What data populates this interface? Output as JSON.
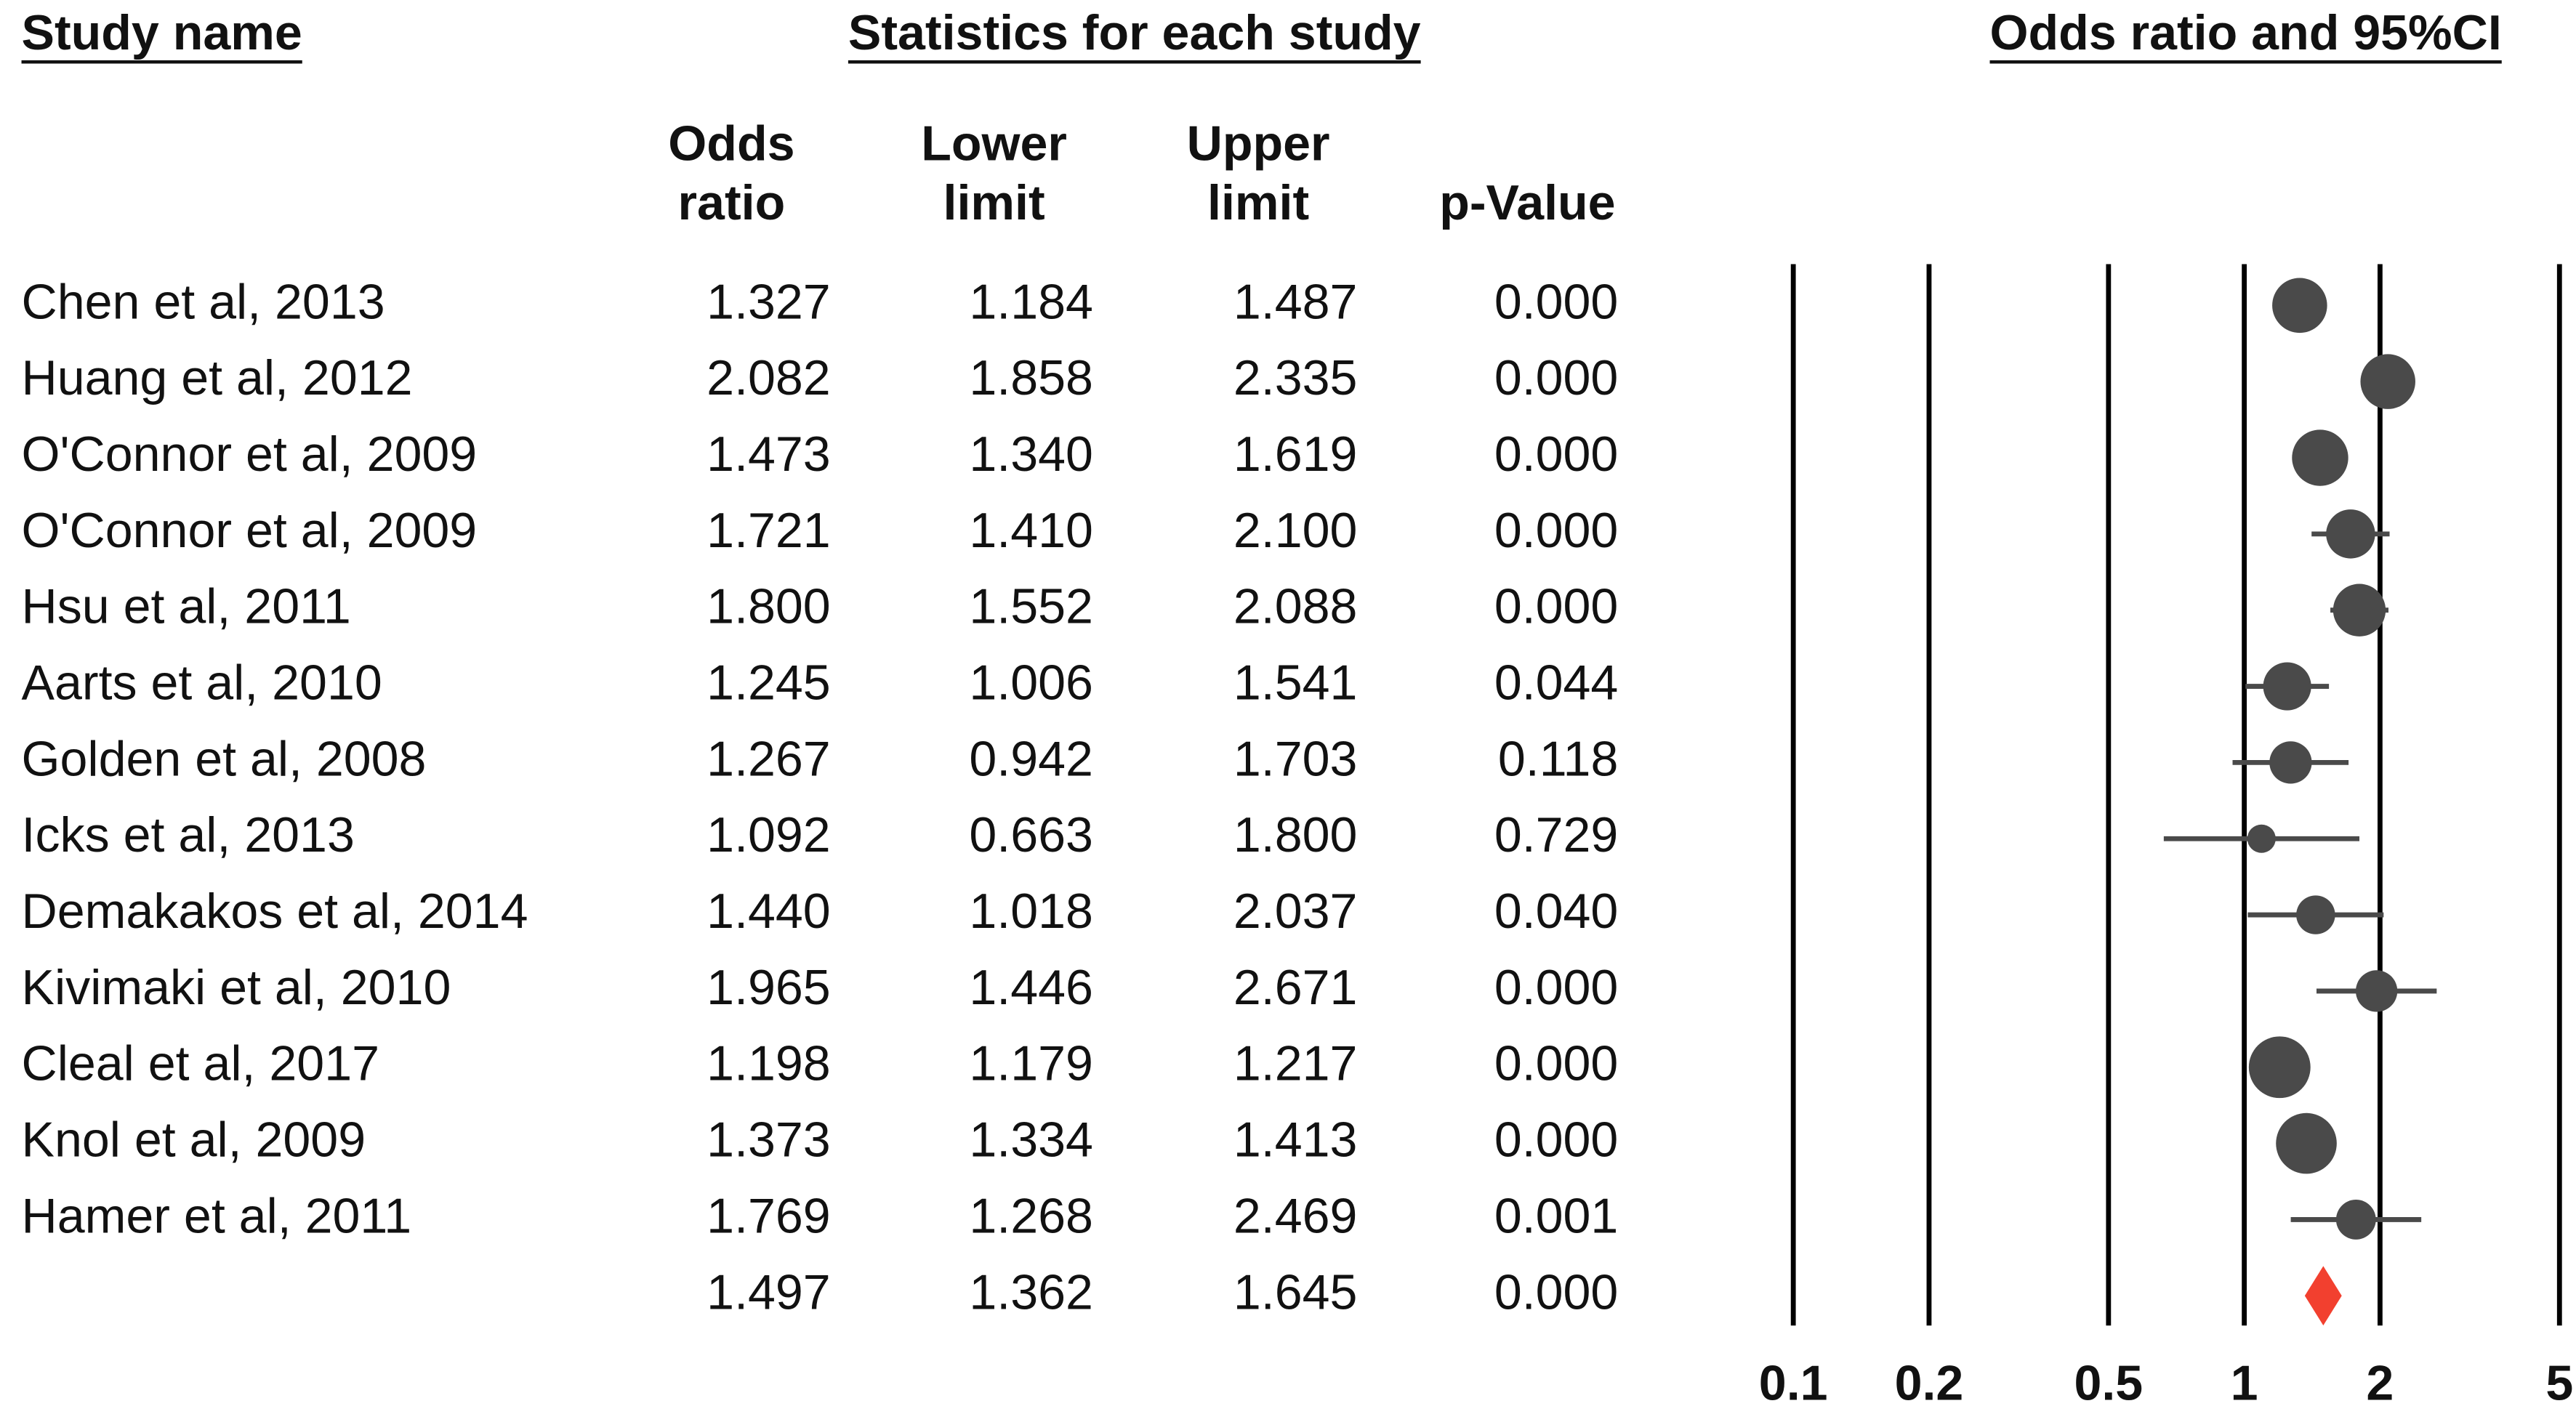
{
  "chart_data": {
    "type": "forest",
    "title_left": "Study name",
    "title_mid": "Statistics for each study",
    "title_right": "Odds ratio and 95%CI",
    "studies": [
      "Chen et al, 2013",
      "Huang et al, 2012",
      "O'Connor et al, 2009",
      "O'Connor et al, 2009",
      "Hsu et al, 2011",
      "Aarts et al, 2010",
      "Golden et al, 2008",
      "Icks et al, 2013",
      "Demakakos et al, 2014",
      "Kivimaki et al, 2010",
      "Cleal et al, 2017",
      "Knol et al, 2009",
      "Hamer et al, 2011",
      null
    ],
    "series": [
      {
        "name": "Odds ratio",
        "values": [
          1.327,
          2.082,
          1.473,
          1.721,
          1.8,
          1.245,
          1.267,
          1.092,
          1.44,
          1.965,
          1.198,
          1.373,
          1.769,
          1.497
        ],
        "value_labels": [
          "1.327",
          "2.082",
          "1.473",
          "1.721",
          "1.800",
          "1.245",
          "1.267",
          "1.092",
          "1.440",
          "1.965",
          "1.198",
          "1.373",
          "1.769",
          "1.497"
        ]
      },
      {
        "name": "Lower limit",
        "values": [
          1.184,
          1.858,
          1.34,
          1.41,
          1.552,
          1.006,
          0.942,
          0.663,
          1.018,
          1.446,
          1.179,
          1.334,
          1.268,
          1.362
        ],
        "value_labels": [
          "1.184",
          "1.858",
          "1.340",
          "1.410",
          "1.552",
          "1.006",
          "0.942",
          "0.663",
          "1.018",
          "1.446",
          "1.179",
          "1.334",
          "1.268",
          "1.362"
        ]
      },
      {
        "name": "Upper limit",
        "values": [
          1.487,
          2.335,
          1.619,
          2.1,
          2.088,
          1.541,
          1.703,
          1.8,
          2.037,
          2.671,
          1.217,
          1.413,
          2.469,
          1.645
        ],
        "value_labels": [
          "1.487",
          "2.335",
          "1.619",
          "2.100",
          "2.088",
          "1.541",
          "1.703",
          "1.800",
          "2.037",
          "2.671",
          "1.217",
          "1.413",
          "2.469",
          "1.645"
        ]
      },
      {
        "name": "p-Value",
        "values": [
          0,
          0,
          0,
          0,
          0,
          0.044,
          0.118,
          0.729,
          0.04,
          0,
          0,
          0,
          0.001,
          0
        ],
        "value_labels": [
          "0.000",
          "0.000",
          "0.000",
          "0.000",
          "0.000",
          "0.044",
          "0.118",
          "0.729",
          "0.040",
          "0.000",
          "0.000",
          "0.000",
          "0.001",
          "0.000"
        ]
      }
    ],
    "marker_color": "#4a4a4a",
    "summary_color": "#f2402f",
    "xscale": "log",
    "xlim": [
      0.1,
      5
    ],
    "xticks": [
      0.1,
      0.2,
      0.5,
      1,
      2,
      5
    ],
    "grid": true
  }
}
